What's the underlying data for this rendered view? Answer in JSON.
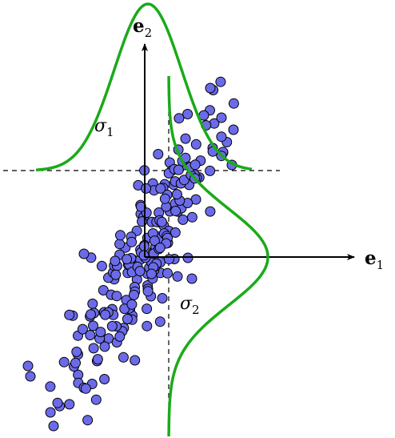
{
  "labels": {
    "e1": "e",
    "e1_sub": "1",
    "e2": "e",
    "e2_sub": "2",
    "sigma1": "σ",
    "sigma1_sub": "1",
    "sigma2": "σ",
    "sigma2_sub": "2"
  },
  "colors": {
    "points_fill": "#6b6bea",
    "points_stroke": "#000000",
    "curve": "#1aaa1a",
    "axes": "#000000"
  },
  "icons": {
    "e1_arrow": "arrow-right-icon",
    "e2_arrow": "arrow-up-icon"
  }
}
